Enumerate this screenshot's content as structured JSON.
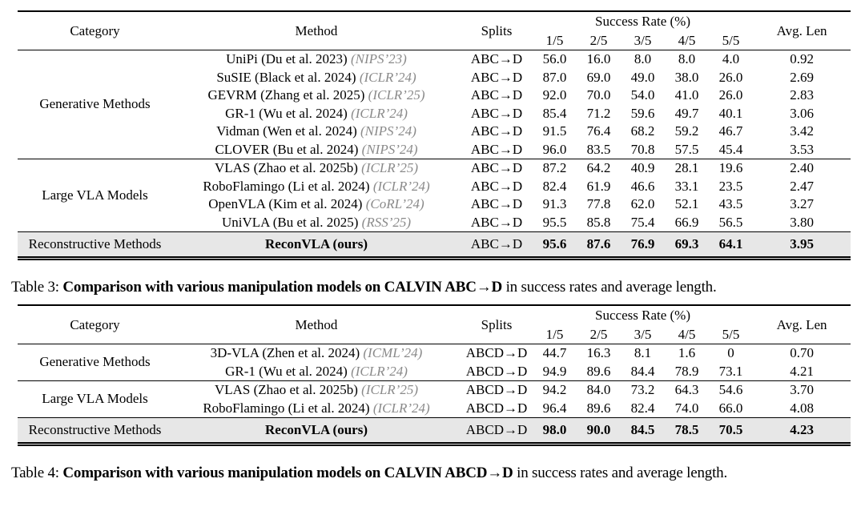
{
  "colors": {
    "venue_gray": "#8a8a8a",
    "highlight_bg": "#e7e7e7",
    "rule": "#000000"
  },
  "tables": [
    {
      "title": "CALVIN ABC→D comparison",
      "header": {
        "category": "Category",
        "method": "Method",
        "splits": "Splits",
        "success_rate": "Success Rate (%)",
        "subcols": [
          "1/5",
          "2/5",
          "3/5",
          "4/5",
          "5/5"
        ],
        "avg_len": "Avg. Len"
      },
      "groups": [
        {
          "category": "Generative Methods",
          "rows": [
            {
              "method": "UniPi (Du et al. 2023)",
              "venue": "(NIPS’23)",
              "split": "ABC→D",
              "rates": [
                "56.0",
                "16.0",
                "8.0",
                "8.0",
                "4.0"
              ],
              "avg_len": "0.92"
            },
            {
              "method": "SuSIE (Black et al. 2024)",
              "venue": "(ICLR’24)",
              "split": "ABC→D",
              "rates": [
                "87.0",
                "69.0",
                "49.0",
                "38.0",
                "26.0"
              ],
              "avg_len": "2.69"
            },
            {
              "method": "GEVRM (Zhang et al. 2025)",
              "venue": "(ICLR’25)",
              "split": "ABC→D",
              "rates": [
                "92.0",
                "70.0",
                "54.0",
                "41.0",
                "26.0"
              ],
              "avg_len": "2.83"
            },
            {
              "method": "GR-1 (Wu et al. 2024)",
              "venue": "(ICLR’24)",
              "split": "ABC→D",
              "rates": [
                "85.4",
                "71.2",
                "59.6",
                "49.7",
                "40.1"
              ],
              "avg_len": "3.06"
            },
            {
              "method": "Vidman (Wen et al. 2024)",
              "venue": "(NIPS’24)",
              "split": "ABC→D",
              "rates": [
                "91.5",
                "76.4",
                "68.2",
                "59.2",
                "46.7"
              ],
              "avg_len": "3.42"
            },
            {
              "method": "CLOVER (Bu et al. 2024)",
              "venue": "(NIPS’24)",
              "split": "ABC→D",
              "rates": [
                "96.0",
                "83.5",
                "70.8",
                "57.5",
                "45.4"
              ],
              "avg_len": "3.53"
            }
          ]
        },
        {
          "category": "Large VLA Models",
          "rows": [
            {
              "method": "VLAS (Zhao et al. 2025b)",
              "venue": "(ICLR’25)",
              "split": "ABC→D",
              "rates": [
                "87.2",
                "64.2",
                "40.9",
                "28.1",
                "19.6"
              ],
              "avg_len": "2.40"
            },
            {
              "method": "RoboFlamingo (Li et al. 2024)",
              "venue": "(ICLR’24)",
              "split": "ABC→D",
              "rates": [
                "82.4",
                "61.9",
                "46.6",
                "33.1",
                "23.5"
              ],
              "avg_len": "2.47"
            },
            {
              "method": "OpenVLA (Kim et al. 2024)",
              "venue": "(CoRL’24)",
              "split": "ABC→D",
              "rates": [
                "91.3",
                "77.8",
                "62.0",
                "52.1",
                "43.5"
              ],
              "avg_len": "3.27"
            },
            {
              "method": "UniVLA (Bu et al. 2025)",
              "venue": "(RSS’25)",
              "split": "ABC→D",
              "rates": [
                "95.5",
                "85.8",
                "75.4",
                "66.9",
                "56.5"
              ],
              "avg_len": "3.80"
            }
          ]
        }
      ],
      "highlight": {
        "category": "Reconstructive Methods",
        "method": "ReconVLA (ours)",
        "venue": "",
        "split": "ABC→D",
        "rates": [
          "95.6",
          "87.6",
          "76.9",
          "69.3",
          "64.1"
        ],
        "avg_len": "3.95"
      },
      "caption": {
        "label": "Table 3: ",
        "bold": "Comparison with various manipulation models on CALVIN ABC→D",
        "rest": " in success rates and average length."
      }
    },
    {
      "title": "CALVIN ABCD→D comparison",
      "header": {
        "category": "Category",
        "method": "Method",
        "splits": "Splits",
        "success_rate": "Success Rate (%)",
        "subcols": [
          "1/5",
          "2/5",
          "3/5",
          "4/5",
          "5/5"
        ],
        "avg_len": "Avg. Len"
      },
      "groups": [
        {
          "category": "Generative Methods",
          "rows": [
            {
              "method": "3D-VLA (Zhen et al. 2024)",
              "venue": "(ICML’24)",
              "split": "ABCD→D",
              "rates": [
                "44.7",
                "16.3",
                "8.1",
                "1.6",
                "0"
              ],
              "avg_len": "0.70"
            },
            {
              "method": "GR-1 (Wu et al. 2024)",
              "venue": "(ICLR’24)",
              "split": "ABCD→D",
              "rates": [
                "94.9",
                "89.6",
                "84.4",
                "78.9",
                "73.1"
              ],
              "avg_len": "4.21"
            }
          ]
        },
        {
          "category": "Large VLA Models",
          "rows": [
            {
              "method": "VLAS (Zhao et al. 2025b)",
              "venue": "(ICLR’25)",
              "split": "ABCD→D",
              "rates": [
                "94.2",
                "84.0",
                "73.2",
                "64.3",
                "54.6"
              ],
              "avg_len": "3.70"
            },
            {
              "method": "RoboFlamingo (Li et al. 2024)",
              "venue": "(ICLR’24)",
              "split": "ABCD→D",
              "rates": [
                "96.4",
                "89.6",
                "82.4",
                "74.0",
                "66.0"
              ],
              "avg_len": "4.08"
            }
          ]
        }
      ],
      "highlight": {
        "category": "Reconstructive Methods",
        "method": "ReconVLA (ours)",
        "venue": "",
        "split": "ABCD→D",
        "rates": [
          "98.0",
          "90.0",
          "84.5",
          "78.5",
          "70.5"
        ],
        "avg_len": "4.23"
      },
      "caption": {
        "label": "Table 4: ",
        "bold": "Comparison with various manipulation models on CALVIN ABCD→D",
        "rest": " in success rates and average length."
      }
    }
  ]
}
